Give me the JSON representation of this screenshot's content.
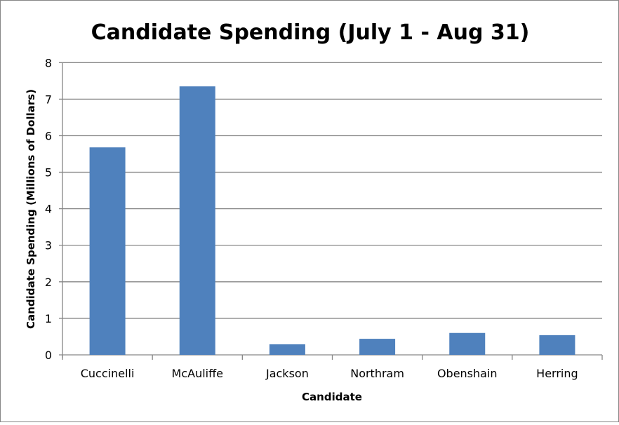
{
  "chart_data": {
    "type": "bar",
    "title": "Candidate Spending (July 1 - Aug 31)",
    "xlabel": "Candidate",
    "ylabel": "Candidate Spending (Millions of Dollars)",
    "categories": [
      "Cuccinelli",
      "McAuliffe",
      "Jackson",
      "Northram",
      "Obenshain",
      "Herring"
    ],
    "values": [
      5.68,
      7.35,
      0.29,
      0.44,
      0.6,
      0.54
    ],
    "ylim": [
      0,
      8
    ],
    "yticks": [
      "0",
      "1",
      "2",
      "3",
      "4",
      "5",
      "6",
      "7",
      "8"
    ],
    "grid": true,
    "legend": "none",
    "bar_color": "#4F81BD",
    "grid_color": "#868686"
  }
}
